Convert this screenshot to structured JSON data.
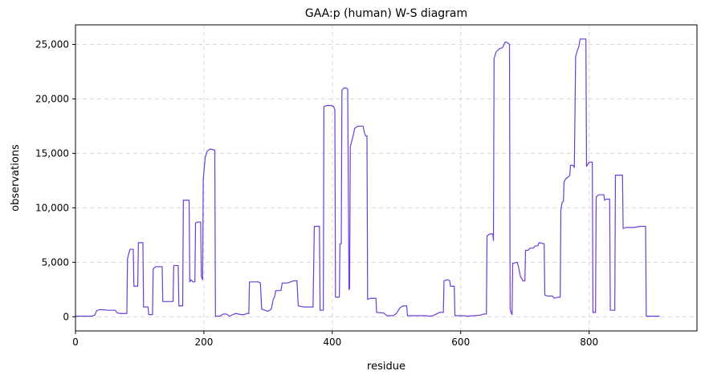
{
  "chart_data": {
    "type": "line",
    "title": "GAA:p (human) W-S diagram",
    "xlabel": "residue",
    "ylabel": "observations",
    "xlim": [
      0,
      968
    ],
    "ylim": [
      -1300,
      26800
    ],
    "xticks": [
      0,
      200,
      400,
      600,
      800
    ],
    "yticks": [
      0,
      5000,
      10000,
      15000,
      20000,
      25000
    ],
    "ytick_labels": [
      "0",
      "5,000",
      "10,000",
      "15,000",
      "20,000",
      "25,000"
    ],
    "grid": true,
    "line_color": "#6a3fd6",
    "series": [
      {
        "name": "",
        "points": [
          [
            0,
            50
          ],
          [
            25,
            50
          ],
          [
            30,
            150
          ],
          [
            33,
            550
          ],
          [
            37,
            650
          ],
          [
            42,
            650
          ],
          [
            50,
            600
          ],
          [
            62,
            600
          ],
          [
            65,
            350
          ],
          [
            70,
            300
          ],
          [
            80,
            300
          ],
          [
            81,
            5300
          ],
          [
            83,
            5800
          ],
          [
            85,
            6200
          ],
          [
            90,
            6200
          ],
          [
            91,
            2800
          ],
          [
            97,
            2800
          ],
          [
            98,
            6800
          ],
          [
            105,
            6800
          ],
          [
            106,
            900
          ],
          [
            113,
            900
          ],
          [
            114,
            200
          ],
          [
            120,
            200
          ],
          [
            121,
            4400
          ],
          [
            125,
            4600
          ],
          [
            135,
            4600
          ],
          [
            136,
            1400
          ],
          [
            152,
            1400
          ],
          [
            153,
            4700
          ],
          [
            160,
            4700
          ],
          [
            161,
            1000
          ],
          [
            167,
            1000
          ],
          [
            168,
            10700
          ],
          [
            177,
            10700
          ],
          [
            178,
            3200
          ],
          [
            180,
            3400
          ],
          [
            183,
            3200
          ],
          [
            186,
            3200
          ],
          [
            187,
            8600
          ],
          [
            190,
            8700
          ],
          [
            195,
            8700
          ],
          [
            196,
            3700
          ],
          [
            198,
            3400
          ],
          [
            199,
            12600
          ],
          [
            202,
            14600
          ],
          [
            205,
            15200
          ],
          [
            210,
            15400
          ],
          [
            217,
            15300
          ],
          [
            218,
            50
          ],
          [
            225,
            50
          ],
          [
            230,
            250
          ],
          [
            235,
            250
          ],
          [
            240,
            50
          ],
          [
            245,
            200
          ],
          [
            250,
            300
          ],
          [
            258,
            200
          ],
          [
            263,
            200
          ],
          [
            267,
            300
          ],
          [
            270,
            300
          ],
          [
            271,
            3200
          ],
          [
            285,
            3200
          ],
          [
            288,
            3100
          ],
          [
            290,
            700
          ],
          [
            295,
            600
          ],
          [
            300,
            500
          ],
          [
            305,
            700
          ],
          [
            308,
            1600
          ],
          [
            310,
            1800
          ],
          [
            312,
            2400
          ],
          [
            320,
            2400
          ],
          [
            322,
            3100
          ],
          [
            330,
            3100
          ],
          [
            335,
            3200
          ],
          [
            340,
            3300
          ],
          [
            345,
            3300
          ],
          [
            347,
            1000
          ],
          [
            355,
            900
          ],
          [
            370,
            900
          ],
          [
            372,
            8300
          ],
          [
            380,
            8300
          ],
          [
            381,
            600
          ],
          [
            386,
            600
          ],
          [
            387,
            19300
          ],
          [
            392,
            19400
          ],
          [
            398,
            19400
          ],
          [
            402,
            19300
          ],
          [
            404,
            19000
          ],
          [
            405,
            1800
          ],
          [
            411,
            1800
          ],
          [
            412,
            6700
          ],
          [
            414,
            6700
          ],
          [
            415,
            20800
          ],
          [
            418,
            21000
          ],
          [
            422,
            21000
          ],
          [
            424,
            20900
          ],
          [
            426,
            2500
          ],
          [
            427,
            2600
          ],
          [
            428,
            15600
          ],
          [
            432,
            16500
          ],
          [
            435,
            17300
          ],
          [
            440,
            17500
          ],
          [
            448,
            17500
          ],
          [
            450,
            16900
          ],
          [
            452,
            16600
          ],
          [
            454,
            16600
          ],
          [
            455,
            1600
          ],
          [
            460,
            1700
          ],
          [
            468,
            1700
          ],
          [
            469,
            400
          ],
          [
            480,
            350
          ],
          [
            485,
            100
          ],
          [
            495,
            100
          ],
          [
            500,
            300
          ],
          [
            505,
            800
          ],
          [
            510,
            1000
          ],
          [
            516,
            1000
          ],
          [
            517,
            100
          ],
          [
            545,
            100
          ],
          [
            552,
            50
          ],
          [
            557,
            100
          ],
          [
            562,
            250
          ],
          [
            567,
            400
          ],
          [
            573,
            400
          ],
          [
            574,
            3300
          ],
          [
            580,
            3400
          ],
          [
            583,
            3300
          ],
          [
            584,
            2800
          ],
          [
            590,
            2800
          ],
          [
            591,
            100
          ],
          [
            605,
            100
          ],
          [
            610,
            50
          ],
          [
            620,
            100
          ],
          [
            630,
            150
          ],
          [
            636,
            250
          ],
          [
            640,
            250
          ],
          [
            641,
            7400
          ],
          [
            645,
            7600
          ],
          [
            650,
            7600
          ],
          [
            651,
            7000
          ],
          [
            652,
            23700
          ],
          [
            655,
            24300
          ],
          [
            660,
            24600
          ],
          [
            665,
            24700
          ],
          [
            666,
            24800
          ],
          [
            669,
            25200
          ],
          [
            672,
            25200
          ],
          [
            674,
            25100
          ],
          [
            676,
            25000
          ],
          [
            677,
            700
          ],
          [
            679,
            300
          ],
          [
            680,
            200
          ],
          [
            681,
            4900
          ],
          [
            688,
            5000
          ],
          [
            690,
            4600
          ],
          [
            693,
            3700
          ],
          [
            697,
            3300
          ],
          [
            700,
            3300
          ],
          [
            701,
            6100
          ],
          [
            705,
            6100
          ],
          [
            708,
            6300
          ],
          [
            713,
            6300
          ],
          [
            716,
            6500
          ],
          [
            720,
            6500
          ],
          [
            722,
            6800
          ],
          [
            730,
            6700
          ],
          [
            731,
            2000
          ],
          [
            735,
            1900
          ],
          [
            743,
            1900
          ],
          [
            746,
            1700
          ],
          [
            752,
            1800
          ],
          [
            755,
            1800
          ],
          [
            756,
            9800
          ],
          [
            758,
            10500
          ],
          [
            760,
            10600
          ],
          [
            761,
            12400
          ],
          [
            764,
            12700
          ],
          [
            767,
            12800
          ],
          [
            770,
            13000
          ],
          [
            771,
            13900
          ],
          [
            775,
            13900
          ],
          [
            777,
            13700
          ],
          [
            779,
            23900
          ],
          [
            782,
            24500
          ],
          [
            784,
            24800
          ],
          [
            786,
            25500
          ],
          [
            795,
            25500
          ],
          [
            796,
            13800
          ],
          [
            800,
            14200
          ],
          [
            805,
            14200
          ],
          [
            806,
            400
          ],
          [
            810,
            400
          ],
          [
            811,
            11000
          ],
          [
            815,
            11200
          ],
          [
            823,
            11200
          ],
          [
            824,
            10700
          ],
          [
            827,
            10800
          ],
          [
            832,
            10800
          ],
          [
            833,
            600
          ],
          [
            840,
            600
          ],
          [
            841,
            13000
          ],
          [
            852,
            13000
          ],
          [
            853,
            8100
          ],
          [
            858,
            8200
          ],
          [
            870,
            8200
          ],
          [
            880,
            8300
          ],
          [
            888,
            8300
          ],
          [
            889,
            50
          ],
          [
            905,
            50
          ],
          [
            910,
            50
          ]
        ]
      }
    ]
  }
}
